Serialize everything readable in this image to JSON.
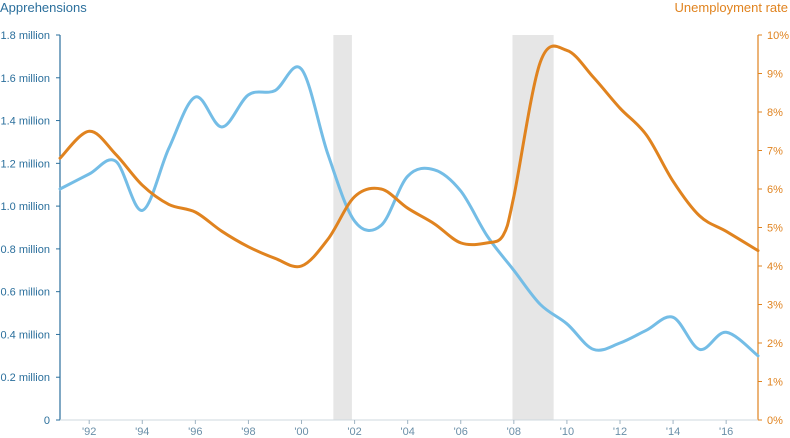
{
  "chart_data": {
    "type": "line",
    "left_axis": {
      "title": "Apprehensions",
      "ticks": [
        "0",
        "0.2 million",
        "0.4 million",
        "0.6 million",
        "0.8 million",
        "1.0 million",
        "1.2 million",
        "1.4 million",
        "1.6 million",
        "1.8 million"
      ],
      "range": [
        0,
        1.8
      ],
      "color": "#2b6f9c"
    },
    "right_axis": {
      "title": "Unemployment rate",
      "ticks": [
        "0%",
        "1%",
        "2%",
        "3%",
        "4%",
        "5%",
        "6%",
        "7%",
        "8%",
        "9%",
        "10%"
      ],
      "range": [
        0,
        10
      ],
      "color": "#e0831f"
    },
    "x_axis": {
      "range": [
        1990.9,
        2017.2
      ],
      "tick_years": [
        1992,
        1994,
        1996,
        1998,
        2000,
        2002,
        2004,
        2006,
        2008,
        2010,
        2012,
        2014,
        2016
      ],
      "tick_labels": [
        "'92",
        "'94",
        "'96",
        "'98",
        "'00",
        "'02",
        "'04",
        "'06",
        "'08",
        "'10",
        "'12",
        "'14",
        "'16"
      ]
    },
    "recession_bands": [
      [
        2001.2,
        2001.9
      ],
      [
        2007.95,
        2009.5
      ]
    ],
    "series": [
      {
        "key": "apprehensions",
        "axis": "left",
        "color": "#74bde6",
        "x": [
          1990.9,
          1992,
          1993,
          1994,
          1995,
          1996,
          1997,
          1998,
          1999,
          2000,
          2001,
          2002,
          2003,
          2004,
          2005,
          2006,
          2007,
          2008,
          2009,
          2010,
          2011,
          2012,
          2013,
          2014,
          2015,
          2016,
          2017.2
        ],
        "values": [
          1.08,
          1.15,
          1.21,
          0.98,
          1.27,
          1.51,
          1.37,
          1.52,
          1.54,
          1.64,
          1.24,
          0.93,
          0.91,
          1.14,
          1.17,
          1.07,
          0.86,
          0.7,
          0.54,
          0.45,
          0.33,
          0.36,
          0.42,
          0.48,
          0.33,
          0.41,
          0.3
        ]
      },
      {
        "key": "unemployment_rate",
        "axis": "right",
        "color": "#e0831f",
        "x": [
          1990.9,
          1992,
          1993,
          1994,
          1995,
          1996,
          1997,
          1998,
          1999,
          2000,
          2001,
          2002,
          2003,
          2004,
          2005,
          2006,
          2007,
          2007.6,
          2008,
          2009,
          2010,
          2011,
          2012,
          2013,
          2014,
          2015,
          2016,
          2017.2
        ],
        "values": [
          6.8,
          7.5,
          6.9,
          6.1,
          5.6,
          5.4,
          4.9,
          4.5,
          4.2,
          4.0,
          4.7,
          5.8,
          6.0,
          5.5,
          5.1,
          4.6,
          4.6,
          4.8,
          5.8,
          9.3,
          9.6,
          8.9,
          8.1,
          7.4,
          6.2,
          5.3,
          4.9,
          4.4
        ]
      }
    ]
  }
}
